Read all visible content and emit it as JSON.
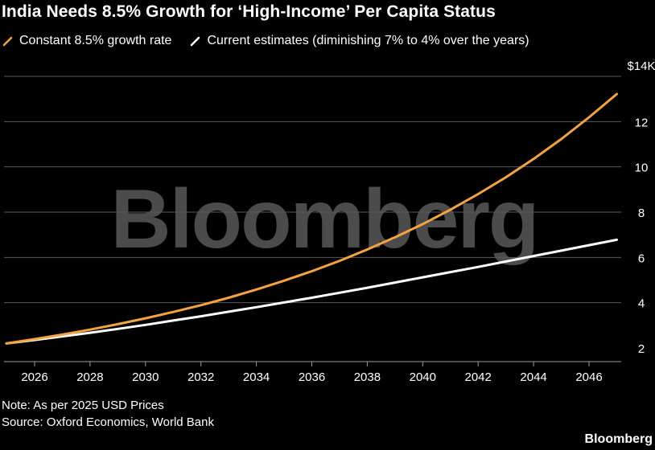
{
  "title": "India Needs 8.5% Growth for ‘High-Income’ Per Capita Status",
  "legend": [
    {
      "label": "Constant 8.5% growth rate",
      "color": "#f5a33c"
    },
    {
      "label": "Current estimates (diminishing 7% to 4% over the years)",
      "color": "#ffffff"
    }
  ],
  "watermark": "Bloomberg",
  "footer": {
    "note": "Note: As per 2025 USD Prices",
    "source": "Source: Oxford Economics, World Bank",
    "logo": "Bloomberg"
  },
  "chart_data": {
    "type": "line",
    "title": "India Needs 8.5% Growth for ‘High-Income’ Per Capita Status",
    "xlabel": "",
    "ylabel": "",
    "xlim": [
      2025,
      2047.5
    ],
    "ylim": [
      1.6,
      14
    ],
    "y_ticks": [
      2,
      4,
      6,
      8,
      10,
      12,
      14
    ],
    "y_tick_labels": [
      "2",
      "4",
      "6",
      "8",
      "10",
      "12",
      "$14K"
    ],
    "x_ticks": [
      2026,
      2028,
      2030,
      2032,
      2034,
      2036,
      2038,
      2040,
      2042,
      2044,
      2046
    ],
    "x_tick_labels": [
      "2026",
      "2028",
      "2030",
      "2032",
      "2034",
      "2036",
      "2038",
      "2040",
      "2042",
      "2044",
      "2046"
    ],
    "grid": "horizontal",
    "legend_position": "top-left",
    "y_axis_side": "right",
    "colors": {
      "background": "#000000",
      "grid": "#5a5a5a",
      "axis": "#9a9a9a",
      "text": "#ffffff"
    },
    "series": [
      {
        "name": "Constant 8.5% growth rate",
        "color": "#f5a33c",
        "x": [
          2025,
          2026,
          2027,
          2028,
          2029,
          2030,
          2031,
          2032,
          2033,
          2034,
          2035,
          2036,
          2037,
          2038,
          2039,
          2040,
          2041,
          2042,
          2043,
          2044,
          2045,
          2046,
          2047
        ],
        "y": [
          2.2,
          2.39,
          2.59,
          2.81,
          3.05,
          3.31,
          3.59,
          3.89,
          4.22,
          4.58,
          4.97,
          5.39,
          5.85,
          6.35,
          6.89,
          7.47,
          8.11,
          8.8,
          9.54,
          10.35,
          11.23,
          12.19,
          13.22
        ]
      },
      {
        "name": "Current estimates (diminishing 7% to 4% over the years)",
        "color": "#ffffff",
        "x": [
          2025,
          2026,
          2027,
          2028,
          2029,
          2030,
          2031,
          2032,
          2033,
          2034,
          2035,
          2036,
          2037,
          2038,
          2039,
          2040,
          2041,
          2042,
          2043,
          2044,
          2045,
          2046,
          2047
        ],
        "y": [
          2.2,
          2.35,
          2.51,
          2.67,
          2.84,
          3.02,
          3.21,
          3.4,
          3.6,
          3.8,
          4.01,
          4.22,
          4.44,
          4.66,
          4.89,
          5.12,
          5.35,
          5.58,
          5.82,
          6.06,
          6.3,
          6.54,
          6.78
        ]
      }
    ]
  }
}
